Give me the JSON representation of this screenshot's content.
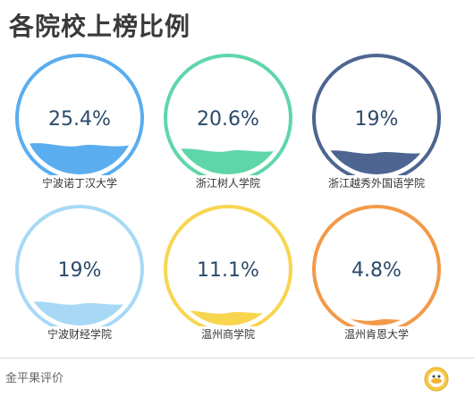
{
  "title": "各院校上榜比例",
  "footer": {
    "brand": "金平果评价"
  },
  "chart_data": {
    "type": "gauge",
    "items": [
      {
        "label": "宁波诺丁汉大学",
        "value": 25.4,
        "display": "25.4%",
        "color": "#5aadef"
      },
      {
        "label": "浙江树人学院",
        "value": 20.6,
        "display": "20.6%",
        "color": "#5fd6a9"
      },
      {
        "label": "浙江越秀外国语学院",
        "value": 19,
        "display": "19%",
        "color": "#4d6590"
      },
      {
        "label": "宁波财经学院",
        "value": 19,
        "display": "19%",
        "color": "#a7d9f5"
      },
      {
        "label": "温州商学院",
        "value": 11.1,
        "display": "11.1%",
        "color": "#f7d54f"
      },
      {
        "label": "温州肯恩大学",
        "value": 4.8,
        "display": "4.8%",
        "color": "#f29a4a"
      }
    ]
  }
}
